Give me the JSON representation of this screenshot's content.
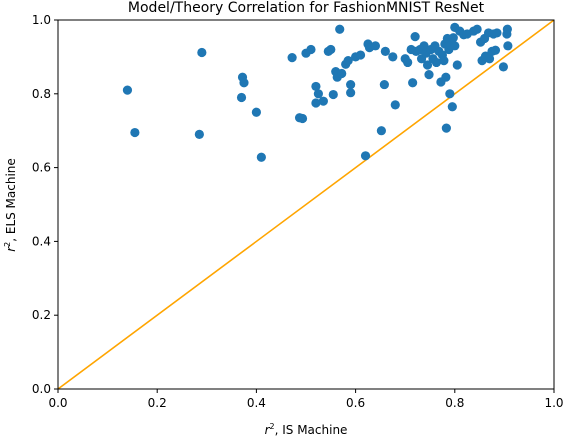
{
  "chart_data": {
    "type": "scatter",
    "title": "Model/Theory Correlation for FashionMNIST ResNet",
    "xlabel": {
      "base": "r",
      "sup": "2",
      "rest": ", IS Machine"
    },
    "ylabel": {
      "base": "r",
      "sup": "2",
      "rest": ", ELS Machine"
    },
    "xlim": [
      0.0,
      1.0
    ],
    "ylim": [
      0.0,
      1.0
    ],
    "xticks": [
      0.0,
      0.2,
      0.4,
      0.6,
      0.8,
      1.0
    ],
    "yticks": [
      0.0,
      0.2,
      0.4,
      0.6,
      0.8,
      1.0
    ],
    "xtick_labels": [
      "0.0",
      "0.2",
      "0.4",
      "0.6",
      "0.8",
      "1.0"
    ],
    "ytick_labels": [
      "0.0",
      "0.2",
      "0.4",
      "0.6",
      "0.8",
      "1.0"
    ],
    "grid": false,
    "legend": "none",
    "point_color": "#1f77b4",
    "reference_line": {
      "x": [
        0.0,
        1.0
      ],
      "y": [
        0.0,
        1.0
      ],
      "color": "#ffa500"
    },
    "points": [
      [
        0.14,
        0.81
      ],
      [
        0.155,
        0.695
      ],
      [
        0.285,
        0.69
      ],
      [
        0.29,
        0.912
      ],
      [
        0.37,
        0.79
      ],
      [
        0.372,
        0.845
      ],
      [
        0.375,
        0.83
      ],
      [
        0.4,
        0.75
      ],
      [
        0.41,
        0.628
      ],
      [
        0.472,
        0.898
      ],
      [
        0.487,
        0.735
      ],
      [
        0.493,
        0.733
      ],
      [
        0.5,
        0.91
      ],
      [
        0.51,
        0.92
      ],
      [
        0.52,
        0.82
      ],
      [
        0.52,
        0.775
      ],
      [
        0.525,
        0.8
      ],
      [
        0.535,
        0.78
      ],
      [
        0.545,
        0.915
      ],
      [
        0.55,
        0.92
      ],
      [
        0.555,
        0.798
      ],
      [
        0.56,
        0.86
      ],
      [
        0.563,
        0.845
      ],
      [
        0.568,
        0.975
      ],
      [
        0.572,
        0.855
      ],
      [
        0.58,
        0.88
      ],
      [
        0.585,
        0.89
      ],
      [
        0.59,
        0.825
      ],
      [
        0.59,
        0.803
      ],
      [
        0.6,
        0.9
      ],
      [
        0.61,
        0.905
      ],
      [
        0.62,
        0.632
      ],
      [
        0.625,
        0.935
      ],
      [
        0.628,
        0.925
      ],
      [
        0.64,
        0.93
      ],
      [
        0.652,
        0.7
      ],
      [
        0.658,
        0.825
      ],
      [
        0.66,
        0.915
      ],
      [
        0.675,
        0.9
      ],
      [
        0.68,
        0.77
      ],
      [
        0.7,
        0.895
      ],
      [
        0.705,
        0.885
      ],
      [
        0.712,
        0.92
      ],
      [
        0.715,
        0.83
      ],
      [
        0.72,
        0.955
      ],
      [
        0.722,
        0.915
      ],
      [
        0.73,
        0.92
      ],
      [
        0.733,
        0.895
      ],
      [
        0.738,
        0.93
      ],
      [
        0.742,
        0.91
      ],
      [
        0.745,
        0.878
      ],
      [
        0.748,
        0.852
      ],
      [
        0.752,
        0.92
      ],
      [
        0.756,
        0.895
      ],
      [
        0.76,
        0.93
      ],
      [
        0.763,
        0.885
      ],
      [
        0.768,
        0.915
      ],
      [
        0.772,
        0.832
      ],
      [
        0.775,
        0.905
      ],
      [
        0.778,
        0.89
      ],
      [
        0.78,
        0.935
      ],
      [
        0.782,
        0.845
      ],
      [
        0.783,
        0.707
      ],
      [
        0.785,
        0.95
      ],
      [
        0.788,
        0.92
      ],
      [
        0.79,
        0.8
      ],
      [
        0.792,
        0.93
      ],
      [
        0.795,
        0.765
      ],
      [
        0.797,
        0.952
      ],
      [
        0.8,
        0.93
      ],
      [
        0.8,
        0.98
      ],
      [
        0.805,
        0.878
      ],
      [
        0.81,
        0.97
      ],
      [
        0.818,
        0.96
      ],
      [
        0.825,
        0.962
      ],
      [
        0.838,
        0.97
      ],
      [
        0.845,
        0.975
      ],
      [
        0.852,
        0.94
      ],
      [
        0.855,
        0.89
      ],
      [
        0.86,
        0.95
      ],
      [
        0.862,
        0.902
      ],
      [
        0.868,
        0.965
      ],
      [
        0.87,
        0.895
      ],
      [
        0.875,
        0.915
      ],
      [
        0.878,
        0.962
      ],
      [
        0.882,
        0.918
      ],
      [
        0.885,
        0.965
      ],
      [
        0.898,
        0.873
      ],
      [
        0.905,
        0.962
      ],
      [
        0.906,
        0.975
      ],
      [
        0.907,
        0.93
      ]
    ]
  }
}
